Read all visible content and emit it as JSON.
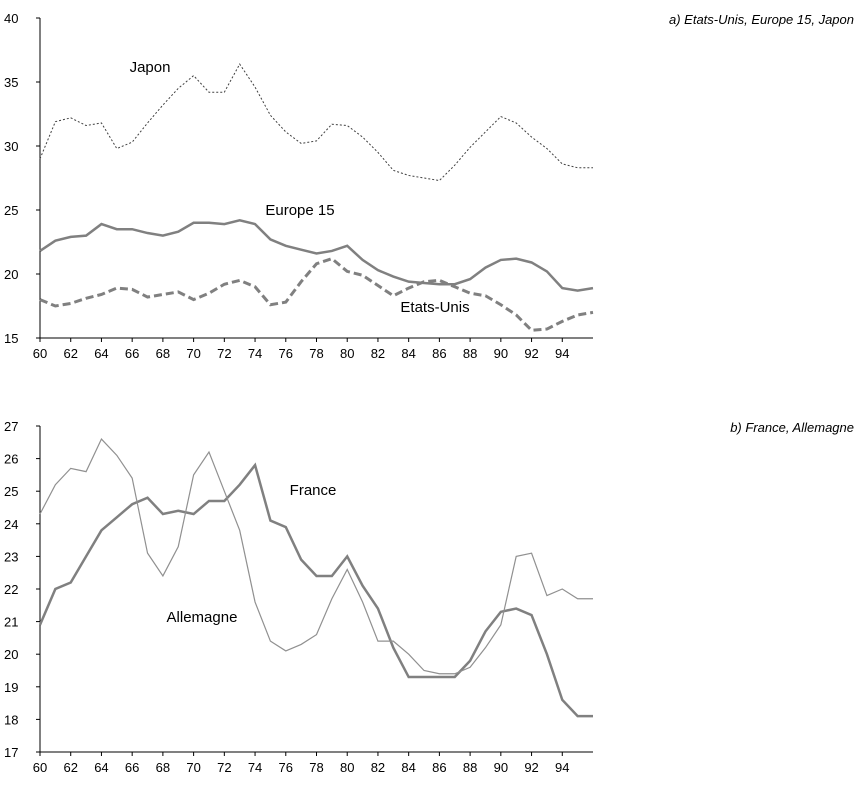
{
  "chart_data": [
    {
      "type": "line",
      "title": "a) Etats-Unis, Europe 15, Japon",
      "x": [
        60,
        61,
        62,
        63,
        64,
        65,
        66,
        67,
        68,
        69,
        70,
        71,
        72,
        73,
        74,
        75,
        76,
        77,
        78,
        79,
        80,
        81,
        82,
        83,
        84,
        85,
        86,
        87,
        88,
        89,
        90,
        91,
        92,
        93,
        94,
        95,
        96
      ],
      "xlim": [
        60,
        96
      ],
      "xticks": [
        60,
        62,
        64,
        66,
        68,
        70,
        72,
        74,
        76,
        78,
        80,
        82,
        84,
        86,
        88,
        90,
        92,
        94
      ],
      "ylim": [
        15,
        40
      ],
      "yticks": [
        15,
        20,
        25,
        30,
        35,
        40
      ],
      "series": [
        {
          "name": "Japon",
          "color": "#404040",
          "width": 1,
          "dash": "dotted",
          "values": [
            29.0,
            31.9,
            32.2,
            31.6,
            31.8,
            29.8,
            30.3,
            31.8,
            33.2,
            34.5,
            35.5,
            34.2,
            34.2,
            36.4,
            34.6,
            32.4,
            31.1,
            30.2,
            30.4,
            31.7,
            31.6,
            30.7,
            29.5,
            28.1,
            27.7,
            27.5,
            27.3,
            28.5,
            29.9,
            31.1,
            32.3,
            31.8,
            30.7,
            29.8,
            28.6,
            28.3,
            28.3
          ]
        },
        {
          "name": "Europe 15",
          "color": "#808080",
          "width": 2.5,
          "dash": "solid",
          "values": [
            21.8,
            22.6,
            22.9,
            23.0,
            23.9,
            23.5,
            23.5,
            23.2,
            23.0,
            23.3,
            24.0,
            24.0,
            23.9,
            24.2,
            23.9,
            22.7,
            22.2,
            21.9,
            21.6,
            21.8,
            22.2,
            21.1,
            20.3,
            19.8,
            19.4,
            19.3,
            19.2,
            19.2,
            19.6,
            20.5,
            21.1,
            21.2,
            20.9,
            20.2,
            18.9,
            18.7,
            18.9
          ]
        },
        {
          "name": "Etats-Unis",
          "color": "#808080",
          "width": 3,
          "dash": "dashed",
          "values": [
            18.0,
            17.5,
            17.7,
            18.1,
            18.4,
            18.9,
            18.8,
            18.2,
            18.4,
            18.6,
            18.0,
            18.5,
            19.2,
            19.5,
            19.0,
            17.6,
            17.8,
            19.4,
            20.8,
            21.2,
            20.2,
            19.9,
            19.1,
            18.3,
            18.9,
            19.4,
            19.5,
            19.0,
            18.5,
            18.3,
            17.6,
            16.8,
            15.6,
            15.7,
            16.3,
            16.8,
            17.0
          ]
        }
      ]
    },
    {
      "type": "line",
      "title": "b) France, Allemagne",
      "x": [
        60,
        61,
        62,
        63,
        64,
        65,
        66,
        67,
        68,
        69,
        70,
        71,
        72,
        73,
        74,
        75,
        76,
        77,
        78,
        79,
        80,
        81,
        82,
        83,
        84,
        85,
        86,
        87,
        88,
        89,
        90,
        91,
        92,
        93,
        94,
        95,
        96
      ],
      "xlim": [
        60,
        96
      ],
      "xticks": [
        60,
        62,
        64,
        66,
        68,
        70,
        72,
        74,
        76,
        78,
        80,
        82,
        84,
        86,
        88,
        90,
        92,
        94
      ],
      "ylim": [
        17,
        27
      ],
      "yticks": [
        17,
        18,
        19,
        20,
        21,
        22,
        23,
        24,
        25,
        26,
        27
      ],
      "series": [
        {
          "name": "France",
          "color": "#808080",
          "width": 2.5,
          "dash": "solid",
          "values": [
            20.9,
            22.0,
            22.2,
            23.0,
            23.8,
            24.2,
            24.6,
            24.8,
            24.3,
            24.4,
            24.3,
            24.7,
            24.7,
            25.2,
            25.8,
            24.1,
            23.9,
            22.9,
            22.4,
            22.4,
            23.0,
            22.1,
            21.4,
            20.2,
            19.3,
            19.3,
            19.3,
            19.3,
            19.8,
            20.7,
            21.3,
            21.4,
            21.2,
            20.0,
            18.6,
            18.1,
            18.1
          ]
        },
        {
          "name": "Allemagne",
          "color": "#909090",
          "width": 1.2,
          "dash": "solid",
          "values": [
            24.3,
            25.2,
            25.7,
            25.6,
            26.6,
            26.1,
            25.4,
            23.1,
            22.4,
            23.3,
            25.5,
            26.2,
            25.0,
            23.8,
            21.6,
            20.4,
            20.1,
            20.3,
            20.6,
            21.7,
            22.6,
            21.6,
            20.4,
            20.4,
            20.0,
            19.5,
            19.4,
            19.4,
            19.6,
            20.2,
            20.9,
            23.0,
            23.1,
            21.8,
            22.0,
            21.7,
            21.7
          ]
        }
      ]
    }
  ]
}
